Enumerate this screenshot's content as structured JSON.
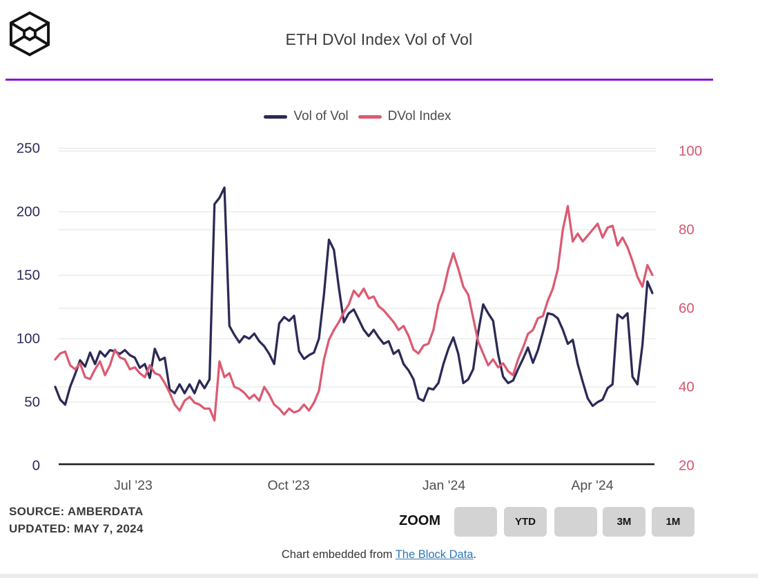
{
  "header": {
    "title": "ETH DVol Index Vol of Vol"
  },
  "legend": [
    {
      "label": "Vol of Vol",
      "color": "#2b2a56"
    },
    {
      "label": "DVol Index",
      "color": "#db5b72"
    }
  ],
  "chart_data": {
    "type": "line",
    "title": "ETH DVol Index Vol of Vol",
    "x_tick_labels": [
      "Jul '23",
      "Oct '23",
      "Jan '24",
      "Apr '24"
    ],
    "left_axis": {
      "ticks": [
        0,
        50,
        100,
        150,
        200,
        250
      ],
      "range": [
        0,
        250
      ],
      "color": "#2b2b58"
    },
    "right_axis": {
      "ticks": [
        20,
        40,
        60,
        80,
        100
      ],
      "range": [
        20,
        100
      ],
      "color": "#d4566e"
    },
    "grid": true,
    "legend_position": "top-center",
    "series": [
      {
        "name": "Vol of Vol",
        "axis": "left",
        "color": "#2b2a56",
        "values": [
          62,
          52,
          48,
          62,
          72,
          83,
          78,
          89,
          80,
          90,
          86,
          91,
          90,
          88,
          91,
          87,
          85,
          77,
          80,
          69,
          92,
          83,
          85,
          60,
          57,
          64,
          57,
          64,
          57,
          67,
          61,
          68,
          206,
          211,
          219,
          110,
          103,
          97,
          102,
          100,
          104,
          98,
          94,
          88,
          80,
          112,
          117,
          114,
          118,
          90,
          84,
          87,
          89,
          100,
          135,
          178,
          170,
          140,
          113,
          120,
          123,
          115,
          107,
          102,
          107,
          101,
          96,
          98,
          88,
          91,
          80,
          75,
          68,
          53,
          51,
          61,
          60,
          65,
          80,
          92,
          101,
          88,
          65,
          68,
          76,
          105,
          127,
          120,
          114,
          88,
          70,
          65,
          67,
          76,
          84,
          93,
          81,
          91,
          105,
          120,
          119,
          116,
          107,
          96,
          99,
          80,
          66,
          53,
          47,
          50,
          52,
          61,
          64,
          119,
          116,
          120,
          70,
          64,
          95,
          145,
          136
        ]
      },
      {
        "name": "DVol Index",
        "axis": "right",
        "color": "#db5b72",
        "values": [
          47,
          48.5,
          49,
          45.5,
          44.5,
          46,
          42.5,
          42,
          44.5,
          46.5,
          43,
          45.5,
          49.5,
          47.5,
          47,
          44.5,
          45,
          43.5,
          42.5,
          45.5,
          43.5,
          43,
          41,
          38.5,
          35.5,
          34,
          36.5,
          37.5,
          36,
          35.5,
          34.5,
          34.5,
          31.5,
          46.5,
          42.5,
          43.5,
          40,
          39.5,
          38.5,
          37,
          38,
          36.5,
          40,
          38,
          35.5,
          34.5,
          33,
          34.5,
          33.5,
          34,
          35.5,
          34,
          36,
          39,
          47,
          52,
          54.5,
          56.5,
          59,
          61,
          64.5,
          63,
          65,
          62.5,
          63,
          60.5,
          59.5,
          58,
          56.5,
          54.5,
          55.5,
          53,
          49.5,
          48.5,
          50.5,
          51,
          54.5,
          61,
          64.5,
          70,
          74,
          70,
          65.5,
          63.5,
          57.5,
          51.5,
          48.5,
          45.5,
          47,
          45,
          46,
          44,
          43,
          47,
          50,
          53.5,
          54.5,
          57.5,
          58,
          62,
          65,
          70,
          80,
          86,
          77,
          79,
          77,
          78.5,
          80,
          81.5,
          78,
          80.5,
          81,
          76,
          78,
          75.5,
          72,
          68,
          65.5,
          71,
          68.5
        ]
      }
    ]
  },
  "footer": {
    "source": "SOURCE: AMBERDATA",
    "updated": "UPDATED: MAY 7, 2024",
    "zoom_label": "ZOOM",
    "zoom_buttons": [
      "",
      "YTD",
      "",
      "3M",
      "1M"
    ],
    "embed_prefix": "Chart embedded from ",
    "embed_link": "The Block Data",
    "embed_suffix": "."
  }
}
